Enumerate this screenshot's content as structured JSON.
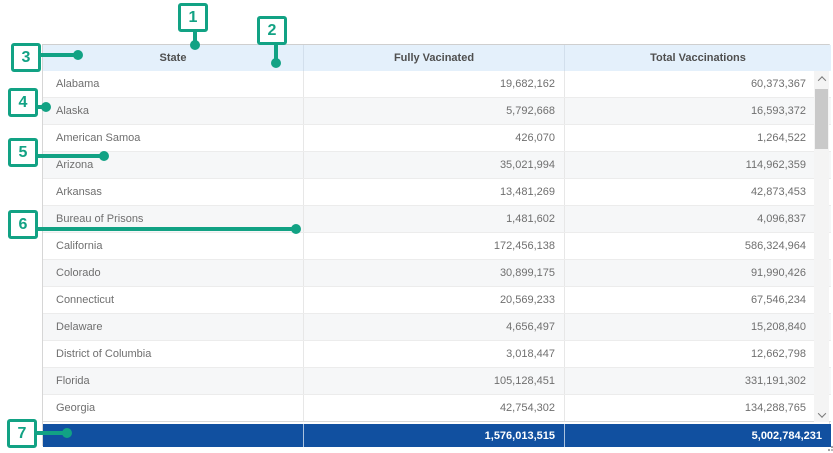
{
  "accent_color": "#12a284",
  "table": {
    "columns": [
      "State",
      "Fully Vacinated",
      "Total Vaccinations"
    ],
    "rows": [
      [
        "Alabama",
        "19,682,162",
        "60,373,367"
      ],
      [
        "Alaska",
        "5,792,668",
        "16,593,372"
      ],
      [
        "American Samoa",
        "426,070",
        "1,264,522"
      ],
      [
        "Arizona",
        "35,021,994",
        "114,962,359"
      ],
      [
        "Arkansas",
        "13,481,269",
        "42,873,453"
      ],
      [
        "Bureau of Prisons",
        "1,481,602",
        "4,096,837"
      ],
      [
        "California",
        "172,456,138",
        "586,324,964"
      ],
      [
        "Colorado",
        "30,899,175",
        "91,990,426"
      ],
      [
        "Connecticut",
        "20,569,233",
        "67,546,234"
      ],
      [
        "Delaware",
        "4,656,497",
        "15,208,840"
      ],
      [
        "District of Columbia",
        "3,018,447",
        "12,662,798"
      ],
      [
        "Florida",
        "105,128,451",
        "331,191,302"
      ],
      [
        "Georgia",
        "42,754,302",
        "134,288,765"
      ]
    ],
    "footer": {
      "state": "",
      "fully_vaccinated_total": "1,576,013,515",
      "total_vaccinations_total": "5,002,784,231"
    },
    "header_bg": "#e4f0fb",
    "footer_bg": "#1150a0"
  },
  "callouts": [
    "1",
    "2",
    "3",
    "4",
    "5",
    "6",
    "7"
  ],
  "icons": [
    "scroll-up-icon",
    "scroll-down-icon",
    "resize-grip-icon"
  ]
}
